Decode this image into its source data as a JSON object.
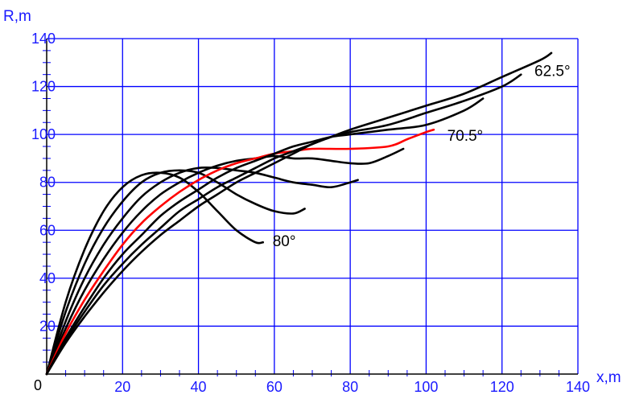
{
  "chart_data": {
    "type": "line",
    "title": "",
    "xlabel": "x,m",
    "ylabel": "R,m",
    "xlim": [
      0,
      140
    ],
    "ylim": [
      0,
      140
    ],
    "x_ticks": [
      20,
      40,
      60,
      80,
      100,
      120,
      140
    ],
    "y_ticks": [
      20,
      40,
      60,
      80,
      100,
      120,
      140
    ],
    "origin_label": "0",
    "grid": true,
    "colors": {
      "grid": "#0000ff",
      "ticks": "#1a1aff",
      "curve": "#000000",
      "highlight": "#ff0000"
    },
    "series": [
      {
        "color": "#000000",
        "points": [
          [
            0,
            0
          ],
          [
            5,
            30
          ],
          [
            10,
            52
          ],
          [
            15,
            68
          ],
          [
            20,
            78
          ],
          [
            25,
            83
          ],
          [
            30,
            84
          ],
          [
            35,
            82
          ],
          [
            40,
            76
          ],
          [
            45,
            68
          ],
          [
            50,
            60
          ],
          [
            55,
            55
          ],
          [
            57,
            55
          ]
        ]
      },
      {
        "color": "#000000",
        "points": [
          [
            0,
            0
          ],
          [
            5,
            26
          ],
          [
            10,
            46
          ],
          [
            15,
            61
          ],
          [
            20,
            72
          ],
          [
            25,
            80
          ],
          [
            30,
            84
          ],
          [
            35,
            85
          ],
          [
            40,
            84
          ],
          [
            45,
            80
          ],
          [
            50,
            75
          ],
          [
            55,
            71
          ],
          [
            60,
            68
          ],
          [
            65,
            67
          ],
          [
            68,
            69
          ]
        ]
      },
      {
        "color": "#000000",
        "points": [
          [
            0,
            0
          ],
          [
            5,
            22
          ],
          [
            10,
            40
          ],
          [
            15,
            54
          ],
          [
            20,
            65
          ],
          [
            25,
            74
          ],
          [
            30,
            80
          ],
          [
            35,
            84
          ],
          [
            40,
            86
          ],
          [
            45,
            86
          ],
          [
            50,
            85
          ],
          [
            55,
            84
          ],
          [
            60,
            82
          ],
          [
            65,
            80
          ],
          [
            70,
            79
          ],
          [
            75,
            78
          ],
          [
            80,
            80
          ],
          [
            82,
            81
          ]
        ]
      },
      {
        "color": "#000000",
        "points": [
          [
            0,
            0
          ],
          [
            5,
            19
          ],
          [
            10,
            35
          ],
          [
            15,
            48
          ],
          [
            20,
            59
          ],
          [
            25,
            68
          ],
          [
            30,
            75
          ],
          [
            35,
            80
          ],
          [
            40,
            84
          ],
          [
            45,
            87
          ],
          [
            50,
            89
          ],
          [
            55,
            90
          ],
          [
            60,
            91
          ],
          [
            65,
            90
          ],
          [
            70,
            90
          ],
          [
            75,
            89
          ],
          [
            80,
            88
          ],
          [
            85,
            88
          ],
          [
            90,
            91
          ],
          [
            94,
            94
          ]
        ]
      },
      {
        "color": "#ff0000",
        "points": [
          [
            0,
            0
          ],
          [
            5,
            17
          ],
          [
            10,
            31
          ],
          [
            15,
            43
          ],
          [
            20,
            54
          ],
          [
            25,
            63
          ],
          [
            30,
            70
          ],
          [
            35,
            76
          ],
          [
            40,
            81
          ],
          [
            45,
            85
          ],
          [
            50,
            88
          ],
          [
            55,
            90
          ],
          [
            60,
            92
          ],
          [
            65,
            93
          ],
          [
            70,
            94
          ],
          [
            80,
            94
          ],
          [
            90,
            95
          ],
          [
            95,
            98
          ],
          [
            100,
            101
          ],
          [
            102,
            102
          ]
        ]
      },
      {
        "color": "#000000",
        "points": [
          [
            0,
            0
          ],
          [
            5,
            15
          ],
          [
            10,
            28
          ],
          [
            15,
            40
          ],
          [
            20,
            50
          ],
          [
            25,
            58
          ],
          [
            30,
            66
          ],
          [
            35,
            72
          ],
          [
            40,
            77
          ],
          [
            45,
            82
          ],
          [
            50,
            86
          ],
          [
            55,
            89
          ],
          [
            60,
            92
          ],
          [
            65,
            95
          ],
          [
            70,
            97
          ],
          [
            75,
            99
          ],
          [
            80,
            100
          ],
          [
            90,
            102
          ],
          [
            100,
            104
          ],
          [
            110,
            110
          ],
          [
            115,
            115
          ]
        ]
      },
      {
        "color": "#000000",
        "points": [
          [
            0,
            0
          ],
          [
            5,
            14
          ],
          [
            10,
            26
          ],
          [
            15,
            37
          ],
          [
            20,
            46
          ],
          [
            25,
            54
          ],
          [
            30,
            61
          ],
          [
            35,
            68
          ],
          [
            40,
            73
          ],
          [
            45,
            78
          ],
          [
            50,
            82
          ],
          [
            55,
            86
          ],
          [
            60,
            90
          ],
          [
            65,
            93
          ],
          [
            70,
            96
          ],
          [
            75,
            99
          ],
          [
            80,
            101
          ],
          [
            90,
            104
          ],
          [
            100,
            109
          ],
          [
            110,
            114
          ],
          [
            120,
            120
          ],
          [
            125,
            125
          ]
        ]
      },
      {
        "color": "#000000",
        "points": [
          [
            0,
            0
          ],
          [
            5,
            13
          ],
          [
            10,
            24
          ],
          [
            15,
            34
          ],
          [
            20,
            43
          ],
          [
            25,
            51
          ],
          [
            30,
            58
          ],
          [
            35,
            64
          ],
          [
            40,
            70
          ],
          [
            45,
            75
          ],
          [
            50,
            80
          ],
          [
            55,
            84
          ],
          [
            60,
            88
          ],
          [
            65,
            92
          ],
          [
            70,
            96
          ],
          [
            75,
            99
          ],
          [
            80,
            102
          ],
          [
            90,
            107
          ],
          [
            100,
            112
          ],
          [
            110,
            117
          ],
          [
            120,
            124
          ],
          [
            130,
            131
          ],
          [
            133,
            134
          ]
        ]
      }
    ],
    "annotations": [
      {
        "text": "80°",
        "x": 57,
        "y": 55
      },
      {
        "text": "70.5°",
        "x": 103,
        "y": 99
      },
      {
        "text": "62.5°",
        "x": 126,
        "y": 126
      }
    ]
  }
}
